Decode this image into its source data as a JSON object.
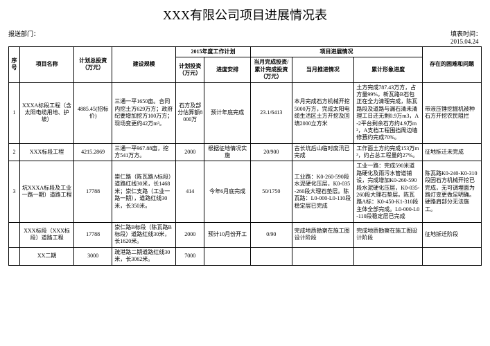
{
  "title": "XXX有限公司项目进展情况表",
  "meta": {
    "dept_label": "报送部门：",
    "date_label": "填表时间：",
    "date_value": "2015.04.24"
  },
  "headers": {
    "seq": "序号",
    "name": "项目名称",
    "total_inv": "计划总投资（万元）",
    "scale": "建设规模",
    "plan_group": "2015年度工作计划",
    "plan_inv": "计划投资（万元）",
    "schedule": "进度安排",
    "progress_group": "项目进展情况",
    "current_inv": "当月完成投资/累计完成投资（万元）",
    "month_status": "当月推进情况",
    "cum_status": "累计形象进度",
    "issues": "存在的困难和问题"
  },
  "rows": [
    {
      "seq": "1",
      "name": "XXXA标段工程（含太阳电缆用地、护坡）",
      "total_inv": "4885.45(招标价)",
      "scale": "三通一平1650亩。合同内挖土方629万方；政府纪要增加挖方100万方；现场变更约42万m³。",
      "plan_inv": "石方及部分估算额8000万",
      "schedule": "预计年底完成",
      "current_inv": "23.1/6413",
      "month_status": "本月完成石方机械开挖5000万方，完成太阳电缆生活区土方开挖及回填2000立方米",
      "cum_status": "土方完成787.43万方，占方量99%，新瓦路B石包正在全力清理完成，陈瓦路段及道路与漏石清未清理工日还无剩0.9万m3，A-2平台剩余石方约4.9万m²，A支档工程围挡周边墙修葺约完成70%。",
      "issues": "带液压锤挖掘机被种石方开挖农民阻拦"
    },
    {
      "seq": "2",
      "name": "XXX标段工程",
      "total_inv": "4215.2869",
      "scale": "三通一平967.88亩，挖方541万方。",
      "plan_inv": "2000",
      "schedule": "根据征地情况实施",
      "current_inv": "20/900",
      "month_status": "古长坑后山临时度汛已完成",
      "cum_status": "工作面土方约完成153万m³，约占总工程量的27%。",
      "issues": "征地拆迁未完成"
    },
    {
      "seq": "3",
      "name": "坑XXXA标段及工业一路一期）道路工程",
      "total_inv": "17788",
      "scale": "崇仁路（陈瓦路A标段）道路红线30米，长1468米；崇仁支路（工业一路一期），道路红线30米，长350米。",
      "plan_inv": "414",
      "schedule": "今年6月底完成",
      "current_inv": "50/1750",
      "month_status": "工业路：K0-260-590段水泥硬化压层，K0-035-260段大理石垫层。陈瓦路：L0-000-L0-110段稳定层已完成",
      "cum_status": "工业一路：完成590米道路硬化及雨污水管道铺设，完成增加K0-260-590段水泥硬化压层，K0-035-260段大理石垫层。陈瓦路A标：K0-450-K1-310段主体全部完成。L0-000-L0-110段稳定层已完成",
      "issues": "陈瓦路K0-240-K0-310段因石方机械开挖已完成，无可调埋面为路灯变更做足明确。硬路肩部分无法施工。"
    },
    {
      "seq": "",
      "name": "XXX标段（XXX标段）道路工程",
      "total_inv": "17788",
      "scale": "崇仁路B标段（陈瓦路B标段）道路红线30米，长1620米。",
      "plan_inv": "2000",
      "schedule": "预计10月份开工",
      "current_inv": "0/90",
      "month_status": "完成地质勘察在施工图设计阶段",
      "cum_status": "完成地质勘察在施工图设计阶段",
      "issues": "征地拆迁阶段"
    },
    {
      "seq": "",
      "name": "XX二期",
      "total_inv": "3000",
      "scale": "疏港路二期道路红线30米，长3062米。",
      "plan_inv": "7000",
      "schedule": "",
      "current_inv": "",
      "month_status": "",
      "cum_status": "",
      "issues": ""
    }
  ]
}
